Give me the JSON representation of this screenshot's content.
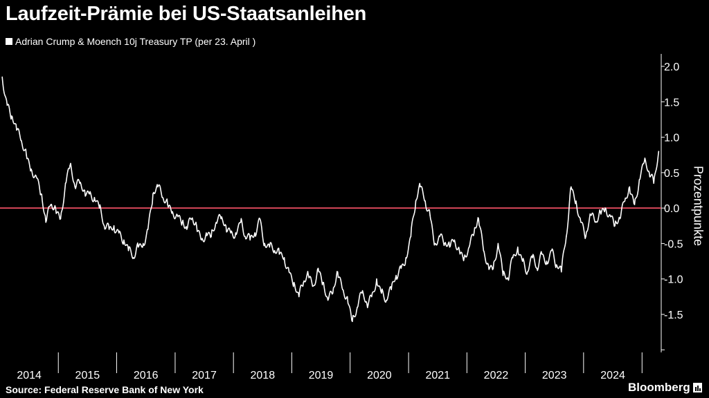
{
  "title": "Laufzeit-Prämie bei US-Staatsanleihen",
  "legend_label": "Adrian Crump & Moench 10j Treasury TP (per 23. April )",
  "source": "Source: Federal Reserve Bank of New York",
  "brand": "Bloomberg",
  "colors": {
    "background": "#000000",
    "series": "#ffffff",
    "zero_line": "#d9485a",
    "text": "#ffffff"
  },
  "chart_data": {
    "type": "line",
    "title": "Laufzeit-Prämie bei US-Staatsanleihen",
    "ylabel": "Prozentpunkte",
    "xlabel": "",
    "x_tick_labels": [
      "2014",
      "2015",
      "2016",
      "2017",
      "2018",
      "2019",
      "2020",
      "2021",
      "2022",
      "2023",
      "2024"
    ],
    "y_tick_labels": [
      "2.0",
      "1.5",
      "1.0",
      "0.5",
      "0.0",
      "-0.5",
      "-1.0",
      "-1.5"
    ],
    "ylim": [
      -2.0,
      2.2
    ],
    "xlim": [
      "2014-01-01",
      "2025-05-01"
    ],
    "y_axis_position": "right",
    "grid": false,
    "reference_line": {
      "y": 0.0,
      "color": "#d9485a"
    },
    "series": [
      {
        "name": "Adrian Crump & Moench 10j Treasury TP",
        "x": [
          "2014-01",
          "2014-02",
          "2014-03",
          "2014-04",
          "2014-05",
          "2014-06",
          "2014-07",
          "2014-08",
          "2014-09",
          "2014-10",
          "2014-11",
          "2014-12",
          "2015-01",
          "2015-02",
          "2015-03",
          "2015-04",
          "2015-05",
          "2015-06",
          "2015-07",
          "2015-08",
          "2015-09",
          "2015-10",
          "2015-11",
          "2015-12",
          "2016-01",
          "2016-02",
          "2016-03",
          "2016-04",
          "2016-05",
          "2016-06",
          "2016-07",
          "2016-08",
          "2016-09",
          "2016-10",
          "2016-11",
          "2016-12",
          "2017-01",
          "2017-02",
          "2017-03",
          "2017-04",
          "2017-05",
          "2017-06",
          "2017-07",
          "2017-08",
          "2017-09",
          "2017-10",
          "2017-11",
          "2017-12",
          "2018-01",
          "2018-02",
          "2018-03",
          "2018-04",
          "2018-05",
          "2018-06",
          "2018-07",
          "2018-08",
          "2018-09",
          "2018-10",
          "2018-11",
          "2018-12",
          "2019-01",
          "2019-02",
          "2019-03",
          "2019-04",
          "2019-05",
          "2019-06",
          "2019-07",
          "2019-08",
          "2019-09",
          "2019-10",
          "2019-11",
          "2019-12",
          "2020-01",
          "2020-02",
          "2020-03",
          "2020-04",
          "2020-05",
          "2020-06",
          "2020-07",
          "2020-08",
          "2020-09",
          "2020-10",
          "2020-11",
          "2020-12",
          "2021-01",
          "2021-02",
          "2021-03",
          "2021-04",
          "2021-05",
          "2021-06",
          "2021-07",
          "2021-08",
          "2021-09",
          "2021-10",
          "2021-11",
          "2021-12",
          "2022-01",
          "2022-02",
          "2022-03",
          "2022-04",
          "2022-05",
          "2022-06",
          "2022-07",
          "2022-08",
          "2022-09",
          "2022-10",
          "2022-11",
          "2022-12",
          "2023-01",
          "2023-02",
          "2023-03",
          "2023-04",
          "2023-05",
          "2023-06",
          "2023-07",
          "2023-08",
          "2023-09",
          "2023-10",
          "2023-11",
          "2023-12",
          "2024-01",
          "2024-02",
          "2024-03",
          "2024-04",
          "2024-05",
          "2024-06",
          "2024-07",
          "2024-08",
          "2024-09",
          "2024-10",
          "2024-11",
          "2024-12",
          "2025-01",
          "2025-02",
          "2025-03",
          "2025-04"
        ],
        "y": [
          1.85,
          1.45,
          1.3,
          1.1,
          0.95,
          0.75,
          0.55,
          0.45,
          0.2,
          -0.2,
          0.05,
          0.0,
          -0.15,
          0.35,
          0.6,
          0.3,
          0.35,
          0.25,
          0.2,
          0.15,
          0.0,
          -0.25,
          -0.3,
          -0.25,
          -0.35,
          -0.45,
          -0.6,
          -0.7,
          -0.55,
          -0.5,
          -0.3,
          0.2,
          0.3,
          0.15,
          0.05,
          -0.05,
          -0.1,
          -0.2,
          -0.3,
          -0.15,
          -0.25,
          -0.45,
          -0.35,
          -0.4,
          -0.2,
          -0.15,
          -0.25,
          -0.35,
          -0.35,
          -0.2,
          -0.4,
          -0.45,
          -0.35,
          -0.15,
          -0.5,
          -0.55,
          -0.6,
          -0.65,
          -0.7,
          -0.9,
          -1.05,
          -1.25,
          -1.05,
          -0.95,
          -1.1,
          -0.85,
          -1.05,
          -1.3,
          -1.2,
          -0.9,
          -1.15,
          -1.25,
          -1.6,
          -1.4,
          -1.2,
          -1.35,
          -1.25,
          -1.0,
          -1.2,
          -1.3,
          -1.15,
          -0.95,
          -0.85,
          -0.7,
          -0.4,
          0.1,
          0.3,
          0.1,
          -0.1,
          -0.5,
          -0.4,
          -0.5,
          -0.55,
          -0.45,
          -0.6,
          -0.7,
          -0.55,
          -0.35,
          -0.15,
          -0.6,
          -0.8,
          -0.85,
          -0.5,
          -0.95,
          -1.0,
          -0.7,
          -0.55,
          -0.75,
          -0.9,
          -0.7,
          -0.85,
          -0.65,
          -0.75,
          -0.6,
          -0.8,
          -0.9,
          -0.4,
          0.3,
          0.1,
          -0.2,
          -0.4,
          -0.1,
          -0.2,
          -0.05,
          0.0,
          -0.1,
          -0.25,
          -0.15,
          0.1,
          0.3,
          0.05,
          0.4,
          0.65,
          0.5,
          0.35,
          0.8
        ]
      }
    ]
  }
}
